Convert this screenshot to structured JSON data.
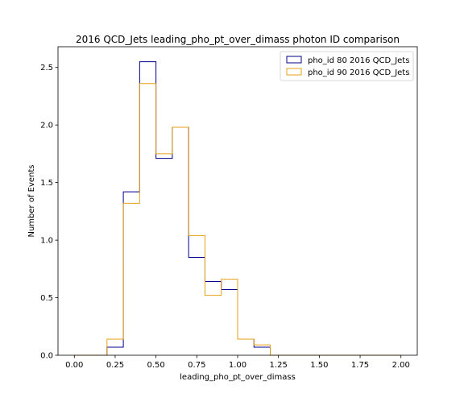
{
  "chart_data": {
    "type": "histogram-step",
    "title": "2016 QCD_Jets leading_pho_pt_over_dimass photon ID comparison",
    "xlabel": "leading_pho_pt_over_dimass",
    "ylabel": "Number of Events",
    "xlim": [
      -0.1,
      2.1
    ],
    "ylim": [
      0,
      2.68
    ],
    "xticks": [
      0.0,
      0.25,
      0.5,
      0.75,
      1.0,
      1.25,
      1.5,
      1.75,
      2.0
    ],
    "xtick_labels": [
      "0.00",
      "0.25",
      "0.50",
      "0.75",
      "1.00",
      "1.25",
      "1.50",
      "1.75",
      "2.00"
    ],
    "yticks": [
      0.0,
      0.5,
      1.0,
      1.5,
      2.0,
      2.5
    ],
    "ytick_labels": [
      "0.0",
      "0.5",
      "1.0",
      "1.5",
      "2.0",
      "2.5"
    ],
    "bin_edges": [
      0.0,
      0.1,
      0.2,
      0.3,
      0.4,
      0.5,
      0.6,
      0.7,
      0.8,
      0.9,
      1.0,
      1.1,
      1.2,
      1.3,
      1.4,
      1.5,
      1.6,
      1.7,
      1.8,
      1.9,
      2.0
    ],
    "series": [
      {
        "name": "pho_id 80 2016 QCD_Jets",
        "color": "#00008b",
        "values": [
          0,
          0,
          0.07,
          1.42,
          2.55,
          1.71,
          1.98,
          0.85,
          0.64,
          0.57,
          0.14,
          0.07,
          0,
          0,
          0,
          0,
          0,
          0,
          0,
          0
        ]
      },
      {
        "name": "pho_id 90 2016 QCD_Jets",
        "color": "#e6a117",
        "values": [
          0,
          0,
          0.14,
          1.32,
          2.36,
          1.75,
          1.98,
          1.04,
          0.52,
          0.66,
          0.14,
          0.09,
          0,
          0,
          0,
          0,
          0,
          0,
          0,
          0
        ]
      }
    ],
    "legend_position": "top-right",
    "grid": false
  }
}
